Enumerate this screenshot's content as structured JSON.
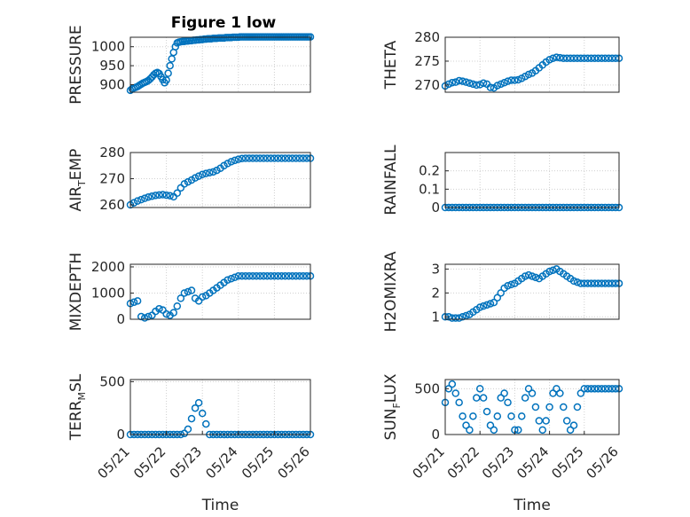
{
  "title": "Figure 1 low",
  "colors": {
    "marker": "#0072BD",
    "axis": "#262626",
    "grid": "#d0d0d0"
  },
  "chart_data": [
    {
      "type": "scatter",
      "key": "pressure",
      "ylabel": "PRESSURE",
      "ylabel_parts": [],
      "yticks": [
        900,
        950,
        1000
      ],
      "ylim": [
        880,
        1025
      ],
      "xlim": [
        0,
        5
      ],
      "show_xticks": false,
      "grid": true,
      "x": [
        0.0,
        0.05,
        0.1,
        0.15,
        0.2,
        0.25,
        0.3,
        0.35,
        0.4,
        0.45,
        0.5,
        0.55,
        0.6,
        0.65,
        0.7,
        0.75,
        0.8,
        0.85,
        0.9,
        0.95,
        1.0,
        1.05,
        1.1,
        1.15,
        1.2,
        1.25,
        1.3,
        1.35,
        1.4,
        1.45,
        1.5,
        1.55,
        1.6,
        1.65,
        1.7,
        1.75,
        1.8,
        1.85,
        1.9,
        1.95,
        2.0,
        2.05,
        2.1,
        2.15,
        2.2,
        2.25,
        2.3,
        2.35,
        2.4,
        2.45,
        2.5,
        2.55,
        2.6,
        2.65,
        2.7,
        2.75,
        2.8,
        2.85,
        2.9,
        2.95,
        3.0,
        3.05,
        3.1,
        3.15,
        3.2,
        3.25,
        3.3,
        3.35,
        3.4,
        3.45,
        3.5,
        3.55,
        3.6,
        3.65,
        3.7,
        3.75,
        3.8,
        3.85,
        3.9,
        3.95,
        4.0,
        4.05,
        4.1,
        4.15,
        4.2,
        4.25,
        4.3,
        4.35,
        4.4,
        4.45,
        4.5,
        4.55,
        4.6,
        4.65,
        4.7,
        4.75,
        4.8,
        4.85,
        4.9,
        4.95,
        5.0
      ],
      "y": [
        885,
        889,
        891,
        893,
        895,
        898,
        901,
        904,
        906,
        908,
        911,
        915,
        920,
        926,
        930,
        932,
        929,
        921,
        913,
        905,
        912,
        930,
        950,
        968,
        985,
        1000,
        1010,
        1012,
        1013,
        1014,
        1014,
        1015,
        1015,
        1016,
        1016,
        1017,
        1017,
        1018,
        1018,
        1019,
        1019,
        1020,
        1020,
        1021,
        1021,
        1021,
        1022,
        1022,
        1022,
        1023,
        1023,
        1023,
        1023,
        1024,
        1024,
        1024,
        1024,
        1025,
        1025,
        1025,
        1025,
        1026,
        1026,
        1026,
        1026,
        1026,
        1026,
        1026,
        1026,
        1026,
        1026,
        1026,
        1026,
        1026,
        1026,
        1026,
        1026,
        1026,
        1026,
        1026,
        1026,
        1026,
        1026,
        1026,
        1026,
        1026,
        1026,
        1026,
        1026,
        1026,
        1026,
        1026,
        1026,
        1026,
        1026,
        1026,
        1026,
        1026,
        1026,
        1026,
        1026
      ]
    },
    {
      "type": "scatter",
      "key": "theta",
      "ylabel": "THETA",
      "ylabel_parts": [],
      "yticks": [
        270,
        275,
        280
      ],
      "ylim": [
        268.5,
        280
      ],
      "xlim": [
        0,
        5
      ],
      "show_xticks": false,
      "grid": true,
      "x": [
        0.0,
        0.1,
        0.2,
        0.3,
        0.4,
        0.5,
        0.6,
        0.7,
        0.8,
        0.9,
        1.0,
        1.1,
        1.2,
        1.3,
        1.4,
        1.5,
        1.6,
        1.7,
        1.8,
        1.9,
        2.0,
        2.1,
        2.2,
        2.3,
        2.4,
        2.5,
        2.6,
        2.7,
        2.8,
        2.9,
        3.0,
        3.1,
        3.2,
        3.3,
        3.4,
        3.5,
        3.6,
        3.7,
        3.8,
        3.9,
        4.0,
        4.1,
        4.2,
        4.3,
        4.4,
        4.5,
        4.6,
        4.7,
        4.8,
        4.9,
        5.0
      ],
      "y": [
        269.8,
        270.2,
        270.5,
        270.6,
        270.9,
        270.8,
        270.6,
        270.4,
        270.2,
        270.0,
        270.1,
        270.4,
        270.2,
        269.5,
        269.4,
        269.9,
        270.2,
        270.5,
        270.8,
        271.0,
        271.0,
        271.1,
        271.4,
        271.8,
        272.2,
        272.5,
        273.0,
        273.6,
        274.2,
        274.8,
        275.3,
        275.6,
        275.8,
        275.7,
        275.6,
        275.6,
        275.6,
        275.6,
        275.6,
        275.6,
        275.6,
        275.6,
        275.6,
        275.6,
        275.6,
        275.6,
        275.6,
        275.6,
        275.6,
        275.6,
        275.6
      ]
    },
    {
      "type": "scatter",
      "key": "air_temp",
      "ylabel": "",
      "ylabel_parts": [
        "AIR",
        "T",
        "EMP"
      ],
      "yticks": [
        260,
        270,
        280
      ],
      "ylim": [
        259,
        280
      ],
      "xlim": [
        0,
        5
      ],
      "show_xticks": false,
      "grid": true,
      "x": [
        0.0,
        0.1,
        0.2,
        0.3,
        0.4,
        0.5,
        0.6,
        0.7,
        0.8,
        0.9,
        1.0,
        1.1,
        1.2,
        1.3,
        1.4,
        1.5,
        1.6,
        1.7,
        1.8,
        1.9,
        2.0,
        2.1,
        2.2,
        2.3,
        2.4,
        2.5,
        2.6,
        2.7,
        2.8,
        2.9,
        3.0,
        3.1,
        3.2,
        3.3,
        3.4,
        3.5,
        3.6,
        3.7,
        3.8,
        3.9,
        4.0,
        4.1,
        4.2,
        4.3,
        4.4,
        4.5,
        4.6,
        4.7,
        4.8,
        4.9,
        5.0
      ],
      "y": [
        260.0,
        260.8,
        261.5,
        262.0,
        262.5,
        263.0,
        263.3,
        263.6,
        263.8,
        263.9,
        263.7,
        263.5,
        263.1,
        264.5,
        266.5,
        268.0,
        268.8,
        269.5,
        270.3,
        271.0,
        271.6,
        272.0,
        272.3,
        272.6,
        273.2,
        274.0,
        275.0,
        275.8,
        276.5,
        277.0,
        277.4,
        277.7,
        277.8,
        277.8,
        277.8,
        277.8,
        277.8,
        277.8,
        277.8,
        277.8,
        277.8,
        277.8,
        277.8,
        277.8,
        277.8,
        277.8,
        277.8,
        277.8,
        277.8,
        277.8,
        277.8
      ]
    },
    {
      "type": "scatter",
      "key": "rainfall",
      "ylabel": "RAINFALL",
      "ylabel_parts": [],
      "yticks": [
        0,
        0.1,
        0.2
      ],
      "ylim": [
        0,
        0.3
      ],
      "xlim": [
        0,
        5
      ],
      "show_xticks": false,
      "grid": true,
      "x": [
        0.0,
        0.1,
        0.2,
        0.3,
        0.4,
        0.5,
        0.6,
        0.7,
        0.8,
        0.9,
        1.0,
        1.1,
        1.2,
        1.3,
        1.4,
        1.5,
        1.6,
        1.7,
        1.8,
        1.9,
        2.0,
        2.1,
        2.2,
        2.3,
        2.4,
        2.5,
        2.6,
        2.7,
        2.8,
        2.9,
        3.0,
        3.1,
        3.2,
        3.3,
        3.4,
        3.5,
        3.6,
        3.7,
        3.8,
        3.9,
        4.0,
        4.1,
        4.2,
        4.3,
        4.4,
        4.5,
        4.6,
        4.7,
        4.8,
        4.9,
        5.0
      ],
      "y": [
        0,
        0,
        0,
        0,
        0,
        0,
        0,
        0,
        0,
        0,
        0,
        0,
        0,
        0,
        0,
        0,
        0,
        0,
        0,
        0,
        0,
        0,
        0,
        0,
        0,
        0,
        0,
        0,
        0,
        0,
        0,
        0,
        0,
        0,
        0,
        0,
        0,
        0,
        0,
        0,
        0,
        0,
        0,
        0,
        0,
        0,
        0,
        0,
        0,
        0,
        0
      ]
    },
    {
      "type": "scatter",
      "key": "mixdepth",
      "ylabel": "MIXDEPTH",
      "ylabel_parts": [],
      "yticks": [
        0,
        1000,
        2000
      ],
      "ylim": [
        0,
        2100
      ],
      "xlim": [
        0,
        5
      ],
      "show_xticks": false,
      "grid": true,
      "x": [
        0.0,
        0.1,
        0.2,
        0.3,
        0.4,
        0.5,
        0.6,
        0.7,
        0.8,
        0.9,
        1.0,
        1.1,
        1.2,
        1.3,
        1.4,
        1.5,
        1.6,
        1.7,
        1.8,
        1.9,
        2.0,
        2.1,
        2.2,
        2.3,
        2.4,
        2.5,
        2.6,
        2.7,
        2.8,
        2.9,
        3.0,
        3.1,
        3.2,
        3.3,
        3.4,
        3.5,
        3.6,
        3.7,
        3.8,
        3.9,
        4.0,
        4.1,
        4.2,
        4.3,
        4.4,
        4.5,
        4.6,
        4.7,
        4.8,
        4.9,
        5.0
      ],
      "y": [
        600,
        650,
        700,
        100,
        50,
        100,
        150,
        300,
        400,
        350,
        200,
        150,
        250,
        500,
        800,
        1000,
        1050,
        1100,
        800,
        700,
        850,
        900,
        1000,
        1100,
        1200,
        1300,
        1400,
        1500,
        1550,
        1600,
        1650,
        1650,
        1650,
        1650,
        1650,
        1650,
        1650,
        1650,
        1650,
        1650,
        1650,
        1650,
        1650,
        1650,
        1650,
        1650,
        1650,
        1650,
        1650,
        1650,
        1650
      ]
    },
    {
      "type": "scatter",
      "key": "h2omixra",
      "ylabel": "H2OMIXRA",
      "ylabel_parts": [],
      "yticks": [
        1,
        2,
        3
      ],
      "ylim": [
        0.9,
        3.2
      ],
      "xlim": [
        0,
        5
      ],
      "show_xticks": false,
      "grid": true,
      "x": [
        0.0,
        0.1,
        0.2,
        0.3,
        0.4,
        0.5,
        0.6,
        0.7,
        0.8,
        0.9,
        1.0,
        1.1,
        1.2,
        1.3,
        1.4,
        1.5,
        1.6,
        1.7,
        1.8,
        1.9,
        2.0,
        2.1,
        2.2,
        2.3,
        2.4,
        2.5,
        2.6,
        2.7,
        2.8,
        2.9,
        3.0,
        3.1,
        3.2,
        3.3,
        3.4,
        3.5,
        3.6,
        3.7,
        3.8,
        3.9,
        4.0,
        4.1,
        4.2,
        4.3,
        4.4,
        4.5,
        4.6,
        4.7,
        4.8,
        4.9,
        5.0
      ],
      "y": [
        1.0,
        1.0,
        0.95,
        0.95,
        0.95,
        1.0,
        1.05,
        1.1,
        1.2,
        1.3,
        1.4,
        1.45,
        1.5,
        1.55,
        1.6,
        1.8,
        2.0,
        2.2,
        2.3,
        2.35,
        2.4,
        2.5,
        2.6,
        2.7,
        2.75,
        2.7,
        2.65,
        2.6,
        2.7,
        2.8,
        2.9,
        2.95,
        3.0,
        2.9,
        2.8,
        2.7,
        2.6,
        2.5,
        2.45,
        2.4,
        2.4,
        2.4,
        2.4,
        2.4,
        2.4,
        2.4,
        2.4,
        2.4,
        2.4,
        2.4,
        2.4
      ]
    },
    {
      "type": "scatter",
      "key": "terr_msl",
      "ylabel": "",
      "ylabel_parts": [
        "TERR",
        "M",
        "SL"
      ],
      "yticks": [
        0,
        500
      ],
      "ylim": [
        0,
        520
      ],
      "xlim": [
        0,
        5
      ],
      "show_xticks": true,
      "grid": true,
      "xticks": [
        "05/21",
        "05/22",
        "05/23",
        "05/24",
        "05/25",
        "05/26"
      ],
      "xlabel": "Time",
      "x": [
        0.0,
        0.1,
        0.2,
        0.3,
        0.4,
        0.5,
        0.6,
        0.7,
        0.8,
        0.9,
        1.0,
        1.1,
        1.2,
        1.3,
        1.4,
        1.5,
        1.6,
        1.7,
        1.8,
        1.9,
        2.0,
        2.1,
        2.2,
        2.3,
        2.4,
        2.5,
        2.6,
        2.7,
        2.8,
        2.9,
        3.0,
        3.1,
        3.2,
        3.3,
        3.4,
        3.5,
        3.6,
        3.7,
        3.8,
        3.9,
        4.0,
        4.1,
        4.2,
        4.3,
        4.4,
        4.5,
        4.6,
        4.7,
        4.8,
        4.9,
        5.0
      ],
      "y": [
        0,
        0,
        0,
        0,
        0,
        0,
        0,
        0,
        0,
        0,
        0,
        0,
        0,
        0,
        0,
        10,
        50,
        150,
        250,
        300,
        200,
        100,
        0,
        0,
        0,
        0,
        0,
        0,
        0,
        0,
        0,
        0,
        0,
        0,
        0,
        0,
        0,
        0,
        0,
        0,
        0,
        0,
        0,
        0,
        0,
        0,
        0,
        0,
        0,
        0,
        0
      ]
    },
    {
      "type": "scatter",
      "key": "sun_flux",
      "ylabel": "",
      "ylabel_parts": [
        "SUN",
        "F",
        "LUX"
      ],
      "yticks": [
        0,
        500
      ],
      "ylim": [
        0,
        600
      ],
      "xlim": [
        0,
        5
      ],
      "show_xticks": true,
      "grid": true,
      "xticks": [
        "05/21",
        "05/22",
        "05/23",
        "05/24",
        "05/25",
        "05/26"
      ],
      "xlabel": "Time",
      "x": [
        0.0,
        0.1,
        0.2,
        0.3,
        0.4,
        0.5,
        0.6,
        0.7,
        0.8,
        0.9,
        1.0,
        1.1,
        1.2,
        1.3,
        1.4,
        1.5,
        1.6,
        1.7,
        1.8,
        1.9,
        2.0,
        2.1,
        2.2,
        2.3,
        2.4,
        2.5,
        2.6,
        2.7,
        2.8,
        2.9,
        3.0,
        3.1,
        3.2,
        3.3,
        3.4,
        3.5,
        3.6,
        3.7,
        3.8,
        3.9,
        4.0,
        4.1,
        4.2,
        4.3,
        4.4,
        4.5,
        4.6,
        4.7,
        4.8,
        4.9,
        5.0
      ],
      "y": [
        350,
        500,
        550,
        450,
        350,
        200,
        100,
        50,
        200,
        400,
        500,
        400,
        250,
        100,
        50,
        200,
        400,
        450,
        350,
        200,
        50,
        50,
        200,
        400,
        500,
        450,
        300,
        150,
        50,
        150,
        300,
        450,
        500,
        450,
        300,
        150,
        50,
        100,
        300,
        450,
        500,
        500,
        500,
        500,
        500,
        500,
        500,
        500,
        500,
        500,
        500
      ]
    }
  ]
}
